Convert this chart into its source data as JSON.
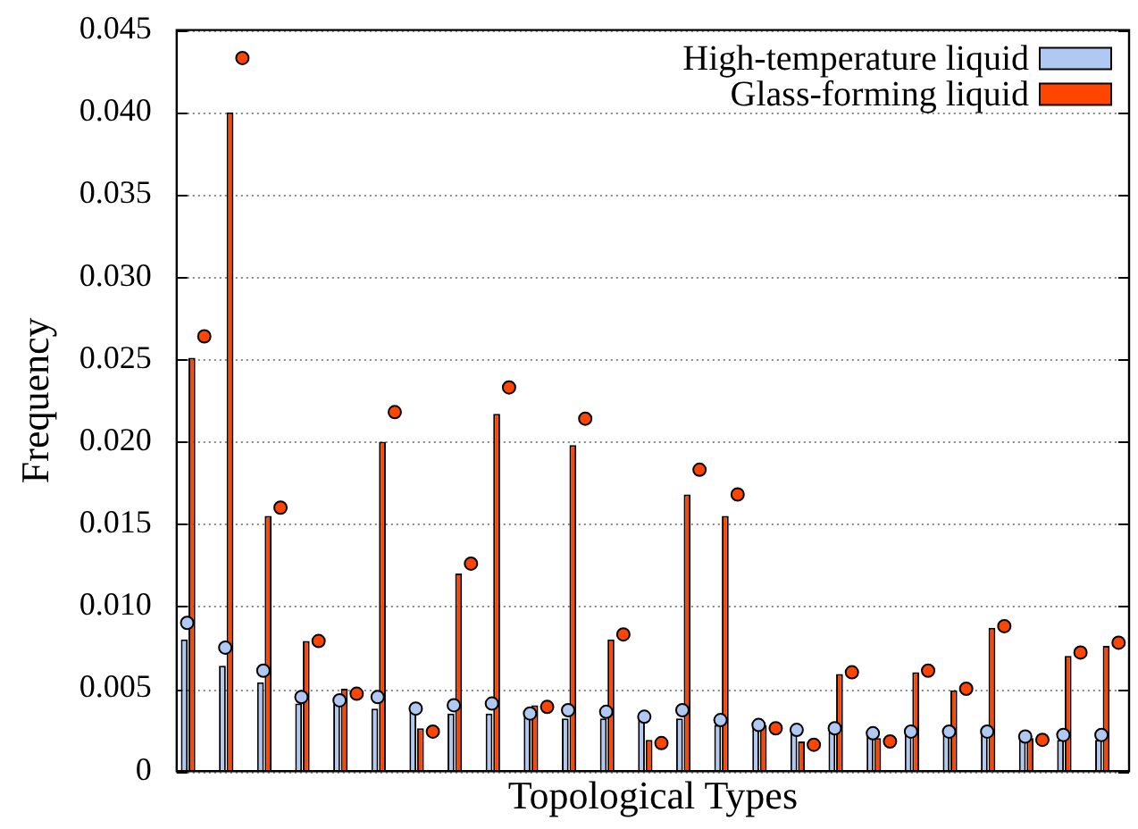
{
  "chart_data": {
    "type": "bar",
    "xlabel": "Topological Types",
    "ylabel": "Frequency",
    "categories": [
      null,
      null,
      null,
      null,
      null,
      null,
      null,
      null,
      null,
      null,
      null,
      null,
      null,
      null,
      null,
      null,
      null,
      null,
      null,
      null,
      null,
      null,
      null,
      null,
      null
    ],
    "series": [
      {
        "name": "High-temperature liquid",
        "color": "#b0c8f2",
        "values": [
          0.008,
          0.0064,
          0.0054,
          0.0041,
          0.0041,
          0.0038,
          0.0037,
          0.0035,
          0.0035,
          0.0033,
          0.0032,
          0.0032,
          0.0031,
          0.0032,
          0.0028,
          0.0027,
          0.0025,
          0.0024,
          0.0022,
          0.0022,
          0.0022,
          0.0022,
          0.0021,
          0.0019,
          0.0019
        ]
      },
      {
        "name": "Glass-forming liquid",
        "color": "#ff4500",
        "values": [
          0.0251,
          0.04,
          0.0155,
          0.0079,
          0.005,
          0.02,
          0.0026,
          0.012,
          0.0217,
          0.004,
          0.0198,
          0.008,
          0.0019,
          0.0168,
          0.0155,
          0.0028,
          0.0018,
          0.0059,
          0.002,
          0.006,
          0.0049,
          0.0087,
          0.002,
          0.007,
          0.0076
        ]
      },
      {
        "type": "scatter",
        "color": "#b0c8f2",
        "values": [
          0.009,
          0.0075,
          0.0061,
          0.0045,
          0.0043,
          0.0045,
          0.0038,
          0.004,
          0.0041,
          0.0035,
          0.0037,
          0.0036,
          0.0033,
          0.0037,
          0.0031,
          0.0028,
          0.0025,
          0.0026,
          0.0023,
          0.0024,
          0.0024,
          0.0024,
          0.0021,
          0.0022,
          0.0022
        ]
      },
      {
        "type": "scatter",
        "color": "#ff4500",
        "values": [
          0.0264,
          0.0433,
          0.016,
          0.0079,
          0.0047,
          0.0218,
          0.0024,
          0.0126,
          0.0233,
          0.0039,
          0.0214,
          0.0083,
          0.0017,
          0.0183,
          0.0168,
          0.0026,
          0.0016,
          0.006,
          0.0018,
          0.0061,
          0.005,
          0.0088,
          0.0019,
          0.0072,
          0.0078
        ]
      }
    ],
    "ylim": [
      0,
      0.045
    ],
    "yticks": [
      {
        "value": 0,
        "label": "0"
      },
      {
        "value": 0.005,
        "label": "0.005"
      },
      {
        "value": 0.01,
        "label": "0.010"
      },
      {
        "value": 0.015,
        "label": "0.015"
      },
      {
        "value": 0.02,
        "label": "0.020"
      },
      {
        "value": 0.025,
        "label": "0.025"
      },
      {
        "value": 0.03,
        "label": "0.030"
      },
      {
        "value": 0.035,
        "label": "0.035"
      },
      {
        "value": 0.04,
        "label": "0.040"
      },
      {
        "value": 0.045,
        "label": "0.045"
      }
    ],
    "grid": "y",
    "legend": "top right",
    "tick_labels": "y",
    "marker": "circle"
  }
}
